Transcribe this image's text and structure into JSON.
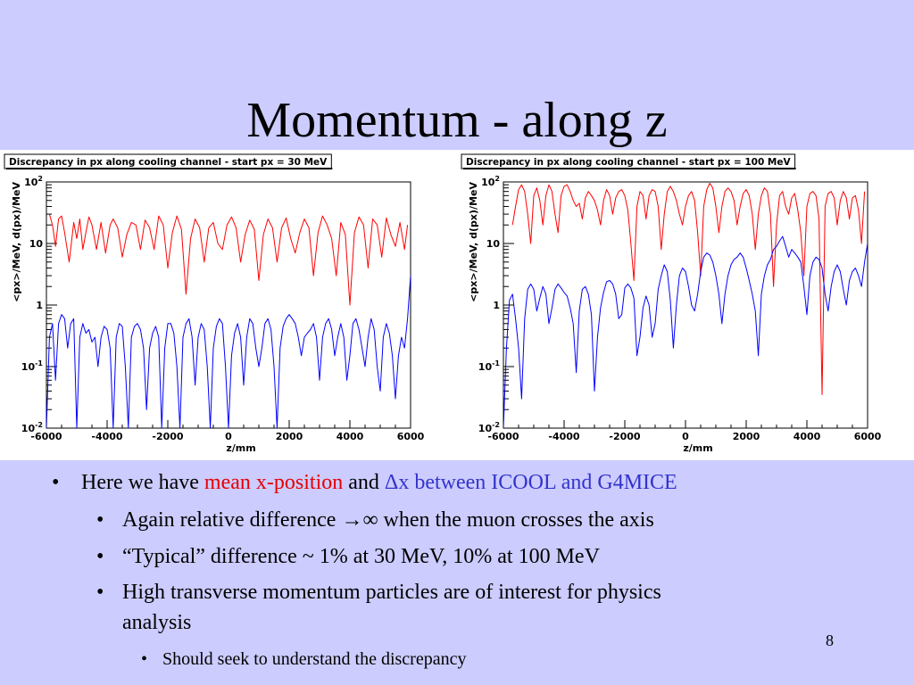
{
  "slide": {
    "title": "Momentum - along z",
    "page_number": "8"
  },
  "bullets": {
    "b1": {
      "prefix": "Here we have ",
      "red": "mean x-position",
      "mid": " and ",
      "blue": "Δx between ICOOL and G4MICE"
    },
    "b2": {
      "pre": "Again relative difference ",
      "symbol": "→∞",
      "post": " when the muon crosses the axis"
    },
    "b3": "“Typical” difference ~ 1% at 30 MeV, 10% at 100 MeV",
    "b4_line1": "High transverse momentum particles are of interest for physics",
    "b4_line2": "analysis",
    "b5": "Should seek to understand the discrepancy"
  },
  "chart_data": [
    {
      "type": "line",
      "title": "Discrepancy in px along cooling channel - start px = 30 MeV",
      "xlabel": "z/mm",
      "ylabel": "<px>/MeV,  d(px)/MeV",
      "xlim": [
        -6000,
        6000
      ],
      "ylim": [
        0.01,
        100
      ],
      "yscale": "log",
      "x_ticks": [
        "-6000",
        "-4000",
        "-2000",
        "0",
        "2000",
        "4000",
        "6000"
      ],
      "y_ticks": [
        {
          "base": "10",
          "exp": "-2",
          "value": 0.01
        },
        {
          "base": "10",
          "exp": "-1",
          "value": 0.1
        },
        {
          "base": "1",
          "exp": "",
          "value": 1
        },
        {
          "base": "10",
          "exp": "",
          "value": 10
        },
        {
          "base": "10",
          "exp": "2",
          "value": 100
        }
      ],
      "series": [
        {
          "color": "#ff0000",
          "x": [
            -5900,
            -5800,
            -5700,
            -5600,
            -5500,
            -5400,
            -5250,
            -5100,
            -5000,
            -4900,
            -4800,
            -4700,
            -4600,
            -4500,
            -4350,
            -4200,
            -4050,
            -3900,
            -3800,
            -3650,
            -3500,
            -3350,
            -3200,
            -3050,
            -2900,
            -2750,
            -2600,
            -2450,
            -2300,
            -2150,
            -2000,
            -1850,
            -1700,
            -1550,
            -1400,
            -1250,
            -1100,
            -950,
            -800,
            -650,
            -500,
            -350,
            -200,
            -50,
            100,
            250,
            400,
            550,
            700,
            850,
            1000,
            1150,
            1300,
            1450,
            1600,
            1750,
            1900,
            2050,
            2200,
            2350,
            2500,
            2650,
            2800,
            2950,
            3100,
            3250,
            3400,
            3550,
            3700,
            3850,
            4000,
            4150,
            4300,
            4450,
            4600,
            4750,
            4900,
            5050,
            5200,
            5350,
            5500,
            5650,
            5800,
            5900
          ],
          "values": [
            30,
            20,
            9,
            25,
            28,
            15,
            5,
            22,
            12,
            25,
            8,
            15,
            27,
            20,
            8,
            22,
            7,
            20,
            25,
            18,
            6,
            14,
            22,
            20,
            8,
            24,
            18,
            8,
            28,
            20,
            4,
            15,
            28,
            17,
            1.5,
            12,
            25,
            18,
            5,
            18,
            22,
            10,
            8,
            20,
            27,
            18,
            5,
            14,
            24,
            17,
            2.5,
            14,
            25,
            18,
            5,
            18,
            26,
            12,
            7,
            15,
            25,
            18,
            3,
            15,
            28,
            20,
            12,
            3,
            22,
            14,
            1,
            15,
            27,
            20,
            4,
            25,
            20,
            6,
            26,
            14,
            9,
            22,
            8,
            20
          ]
        },
        {
          "color": "#0000ff",
          "x": [
            -6000,
            -5900,
            -5800,
            -5700,
            -5600,
            -5500,
            -5400,
            -5300,
            -5200,
            -5100,
            -5000,
            -4900,
            -4800,
            -4700,
            -4600,
            -4500,
            -4400,
            -4300,
            -4200,
            -4100,
            -4000,
            -3900,
            -3800,
            -3700,
            -3600,
            -3500,
            -3400,
            -3300,
            -3200,
            -3100,
            -3000,
            -2900,
            -2800,
            -2700,
            -2600,
            -2500,
            -2400,
            -2300,
            -2200,
            -2100,
            -2000,
            -1900,
            -1800,
            -1700,
            -1600,
            -1500,
            -1400,
            -1300,
            -1200,
            -1100,
            -1000,
            -900,
            -800,
            -700,
            -600,
            -500,
            -400,
            -300,
            -200,
            -100,
            0,
            100,
            200,
            300,
            400,
            500,
            600,
            700,
            800,
            900,
            1000,
            1100,
            1200,
            1300,
            1400,
            1500,
            1600,
            1700,
            1800,
            1900,
            2000,
            2100,
            2200,
            2300,
            2400,
            2500,
            2600,
            2700,
            2800,
            2900,
            3000,
            3100,
            3200,
            3300,
            3400,
            3500,
            3600,
            3700,
            3800,
            3900,
            4000,
            4100,
            4200,
            4300,
            4400,
            4500,
            4600,
            4700,
            4800,
            4900,
            5000,
            5100,
            5200,
            5300,
            5400,
            5500,
            5600,
            5700,
            5800,
            5900,
            6000
          ],
          "values": [
            0.01,
            0.3,
            0.5,
            0.06,
            0.5,
            0.7,
            0.6,
            0.2,
            0.5,
            0.6,
            0.01,
            0.3,
            0.5,
            0.35,
            0.4,
            0.25,
            0.3,
            0.1,
            0.3,
            0.45,
            0.4,
            0.2,
            0.01,
            0.3,
            0.5,
            0.45,
            0.1,
            0.01,
            0.3,
            0.45,
            0.5,
            0.4,
            0.2,
            0.02,
            0.2,
            0.35,
            0.45,
            0.3,
            0.01,
            0.2,
            0.5,
            0.5,
            0.35,
            0.1,
            0.01,
            0.3,
            0.5,
            0.6,
            0.3,
            0.05,
            0.3,
            0.5,
            0.4,
            0.1,
            0.01,
            0.2,
            0.45,
            0.6,
            0.5,
            0.1,
            0.01,
            0.15,
            0.35,
            0.5,
            0.3,
            0.05,
            0.3,
            0.6,
            0.5,
            0.2,
            0.1,
            0.2,
            0.5,
            0.6,
            0.4,
            0.1,
            0.01,
            0.2,
            0.45,
            0.6,
            0.7,
            0.6,
            0.5,
            0.3,
            0.15,
            0.3,
            0.35,
            0.4,
            0.5,
            0.3,
            0.06,
            0.3,
            0.5,
            0.6,
            0.4,
            0.15,
            0.3,
            0.5,
            0.3,
            0.06,
            0.15,
            0.5,
            0.6,
            0.4,
            0.2,
            0.1,
            0.3,
            0.6,
            0.4,
            0.1,
            0.04,
            0.3,
            0.5,
            0.35,
            0.15,
            0.03,
            0.15,
            0.3,
            0.2,
            0.6,
            3
          ]
        }
      ]
    },
    {
      "type": "line",
      "title": "Discrepancy in px along cooling channel - start px = 100 MeV",
      "xlabel": "z/mm",
      "ylabel": "<px>/MeV,  d(px)/MeV",
      "xlim": [
        -6000,
        6000
      ],
      "ylim": [
        0.01,
        100
      ],
      "yscale": "log",
      "x_ticks": [
        "-6000",
        "-4000",
        "-2000",
        "0",
        "2000",
        "4000",
        "6000"
      ],
      "y_ticks": [
        {
          "base": "10",
          "exp": "-2",
          "value": 0.01
        },
        {
          "base": "10",
          "exp": "-1",
          "value": 0.1
        },
        {
          "base": "1",
          "exp": "",
          "value": 1
        },
        {
          "base": "10",
          "exp": "",
          "value": 10
        },
        {
          "base": "10",
          "exp": "2",
          "value": 100
        }
      ],
      "series": [
        {
          "color": "#ff0000",
          "x": [
            -5700,
            -5600,
            -5500,
            -5400,
            -5300,
            -5200,
            -5100,
            -5000,
            -4900,
            -4800,
            -4700,
            -4600,
            -4500,
            -4400,
            -4300,
            -4200,
            -4100,
            -4000,
            -3900,
            -3800,
            -3700,
            -3600,
            -3500,
            -3400,
            -3300,
            -3200,
            -3100,
            -3000,
            -2900,
            -2800,
            -2700,
            -2600,
            -2500,
            -2400,
            -2300,
            -2200,
            -2100,
            -2000,
            -1900,
            -1800,
            -1700,
            -1600,
            -1500,
            -1400,
            -1300,
            -1200,
            -1100,
            -1000,
            -900,
            -800,
            -700,
            -600,
            -500,
            -400,
            -300,
            -200,
            -100,
            0,
            100,
            200,
            300,
            400,
            500,
            600,
            700,
            800,
            900,
            1000,
            1100,
            1200,
            1300,
            1400,
            1500,
            1600,
            1700,
            1800,
            1900,
            2000,
            2100,
            2200,
            2300,
            2400,
            2500,
            2600,
            2700,
            2800,
            2900,
            3000,
            3100,
            3200,
            3300,
            3400,
            3500,
            3600,
            3700,
            3800,
            3900,
            4000,
            4100,
            4200,
            4300,
            4400,
            4500,
            4600,
            4700,
            4800,
            4900,
            5000,
            5100,
            5200,
            5300,
            5400,
            5500,
            5600,
            5700,
            5800,
            5900
          ],
          "values": [
            20,
            40,
            75,
            90,
            70,
            30,
            10,
            60,
            80,
            50,
            20,
            60,
            90,
            70,
            30,
            15,
            60,
            85,
            90,
            70,
            50,
            40,
            45,
            25,
            55,
            70,
            60,
            50,
            35,
            20,
            50,
            75,
            60,
            30,
            55,
            70,
            75,
            60,
            35,
            10,
            2.5,
            40,
            70,
            60,
            25,
            60,
            75,
            70,
            40,
            8,
            30,
            70,
            85,
            70,
            50,
            30,
            20,
            40,
            60,
            70,
            50,
            15,
            3,
            40,
            75,
            95,
            80,
            40,
            15,
            40,
            70,
            80,
            70,
            50,
            20,
            40,
            65,
            75,
            60,
            30,
            8,
            30,
            60,
            80,
            70,
            30,
            2,
            20,
            60,
            70,
            40,
            30,
            55,
            65,
            35,
            15,
            3,
            40,
            65,
            70,
            60,
            25,
            0.035,
            40,
            65,
            70,
            55,
            20,
            50,
            70,
            55,
            25,
            55,
            60,
            35,
            10,
            70
          ]
        },
        {
          "color": "#0000ff",
          "x": [
            -6000,
            -5900,
            -5800,
            -5700,
            -5600,
            -5500,
            -5400,
            -5300,
            -5200,
            -5100,
            -5000,
            -4900,
            -4800,
            -4700,
            -4600,
            -4500,
            -4400,
            -4300,
            -4200,
            -4100,
            -4000,
            -3900,
            -3800,
            -3700,
            -3600,
            -3500,
            -3400,
            -3300,
            -3200,
            -3100,
            -3000,
            -2900,
            -2800,
            -2700,
            -2600,
            -2500,
            -2400,
            -2300,
            -2200,
            -2100,
            -2000,
            -1900,
            -1800,
            -1700,
            -1600,
            -1500,
            -1400,
            -1300,
            -1200,
            -1100,
            -1000,
            -900,
            -800,
            -700,
            -600,
            -500,
            -400,
            -300,
            -200,
            -100,
            0,
            100,
            200,
            300,
            400,
            500,
            600,
            700,
            800,
            900,
            1000,
            1100,
            1200,
            1300,
            1400,
            1500,
            1600,
            1700,
            1800,
            1900,
            2000,
            2100,
            2200,
            2300,
            2400,
            2500,
            2600,
            2700,
            2800,
            2900,
            3000,
            3100,
            3200,
            3300,
            3400,
            3500,
            3600,
            3700,
            3800,
            3900,
            4000,
            4100,
            4200,
            4300,
            4400,
            4500,
            4600,
            4700,
            4800,
            4900,
            5000,
            5100,
            5200,
            5300,
            5400,
            5500,
            5600,
            5700,
            5800,
            5900,
            6000
          ],
          "values": [
            0.01,
            0.2,
            1.2,
            1.5,
            0.6,
            0.2,
            0.03,
            0.6,
            1.8,
            2.2,
            1.8,
            0.8,
            1.3,
            2,
            1.5,
            0.5,
            0.9,
            1.8,
            2.2,
            1.9,
            1.6,
            1.4,
            0.9,
            0.5,
            0.08,
            0.8,
            1.8,
            2,
            1.5,
            0.7,
            0.04,
            0.3,
            0.9,
            1.6,
            2.4,
            2.5,
            2.2,
            1.5,
            0.6,
            0.7,
            1.9,
            2.2,
            1.9,
            1.3,
            0.15,
            0.3,
            0.9,
            1.4,
            1,
            0.3,
            0.5,
            1.8,
            3,
            4.5,
            3.5,
            1.2,
            0.2,
            1,
            3,
            4,
            3.5,
            2,
            1,
            0.8,
            1.5,
            3.5,
            6,
            7,
            6.5,
            5,
            3,
            1.5,
            0.5,
            1.5,
            3,
            4.5,
            5.5,
            6,
            7,
            6,
            4,
            2.5,
            1.5,
            0.8,
            0.15,
            1.5,
            3,
            4.5,
            5.5,
            8,
            9,
            11,
            13,
            9,
            6,
            8,
            7,
            6,
            5,
            2,
            0.7,
            3,
            5,
            6,
            5.5,
            4,
            1.5,
            0.8,
            2,
            3.5,
            4.5,
            3.5,
            1.8,
            1,
            2.5,
            3.5,
            4,
            3,
            2,
            5,
            10
          ]
        }
      ]
    }
  ]
}
